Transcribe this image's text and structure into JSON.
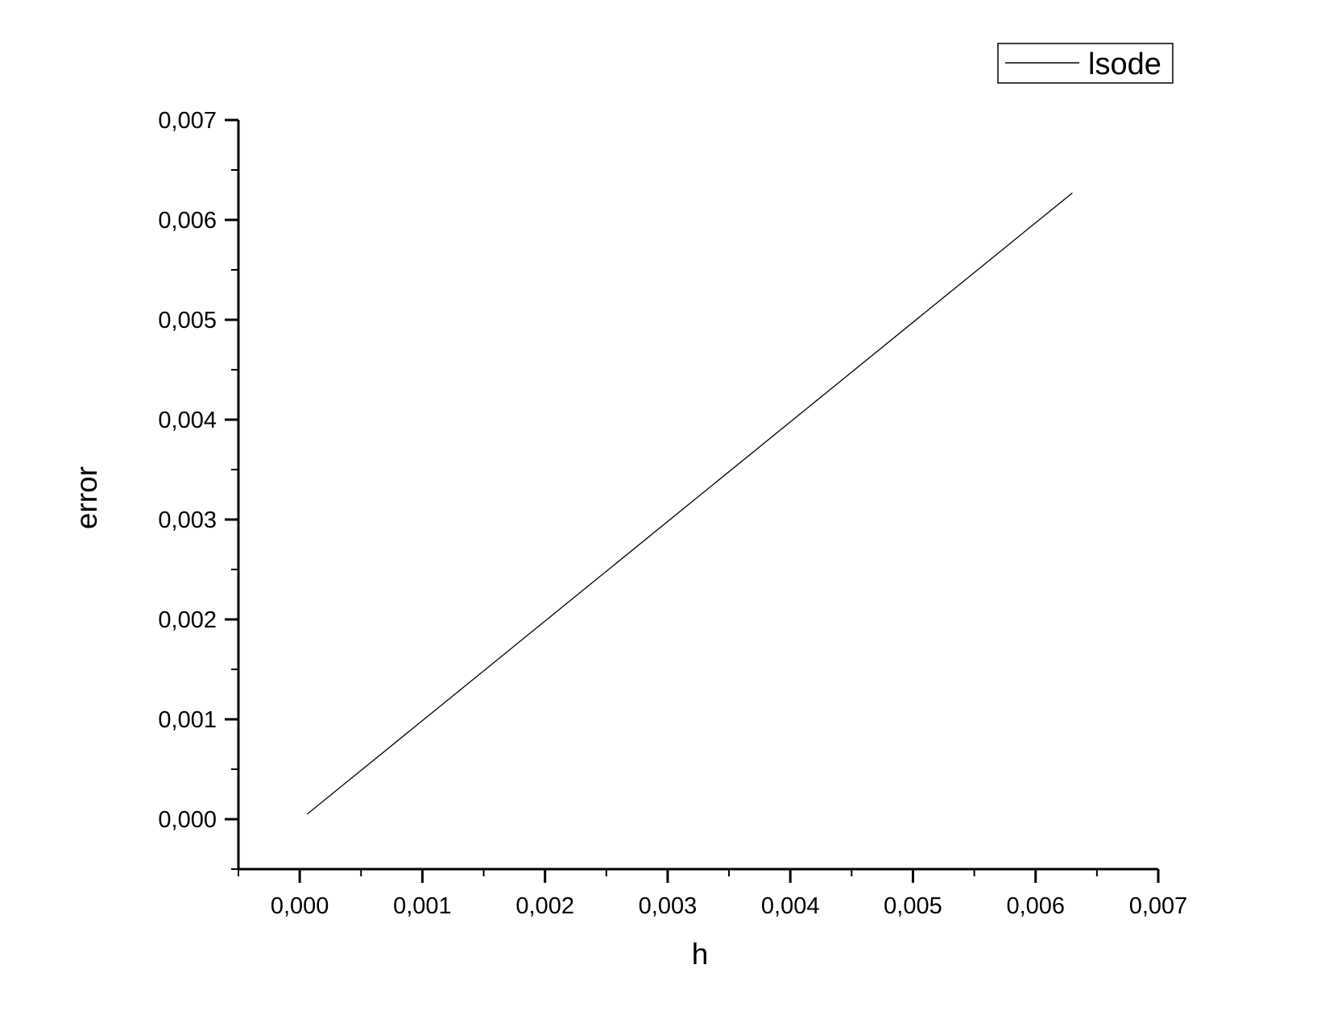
{
  "chart_data": {
    "type": "line",
    "xlabel": "h",
    "ylabel": "error",
    "xlim": [
      -0.0005,
      0.007
    ],
    "ylim": [
      -0.0005,
      0.007
    ],
    "x_ticks": [
      0.0,
      0.001,
      0.002,
      0.003,
      0.004,
      0.005,
      0.006,
      0.007
    ],
    "x_tick_labels": [
      "0,000",
      "0,001",
      "0,002",
      "0,003",
      "0,004",
      "0,005",
      "0,006",
      "0,007"
    ],
    "y_ticks": [
      0.0,
      0.001,
      0.002,
      0.003,
      0.004,
      0.005,
      0.006,
      0.007
    ],
    "y_tick_labels": [
      "0,000",
      "0,001",
      "0,002",
      "0,003",
      "0,004",
      "0,005",
      "0,006",
      "0,007"
    ],
    "grid": false,
    "legend": "top-right",
    "series": [
      {
        "name": "lsode",
        "color": "#000000",
        "x": [
          6e-05,
          0.0063
        ],
        "y": [
          5e-05,
          0.00627
        ]
      }
    ]
  }
}
